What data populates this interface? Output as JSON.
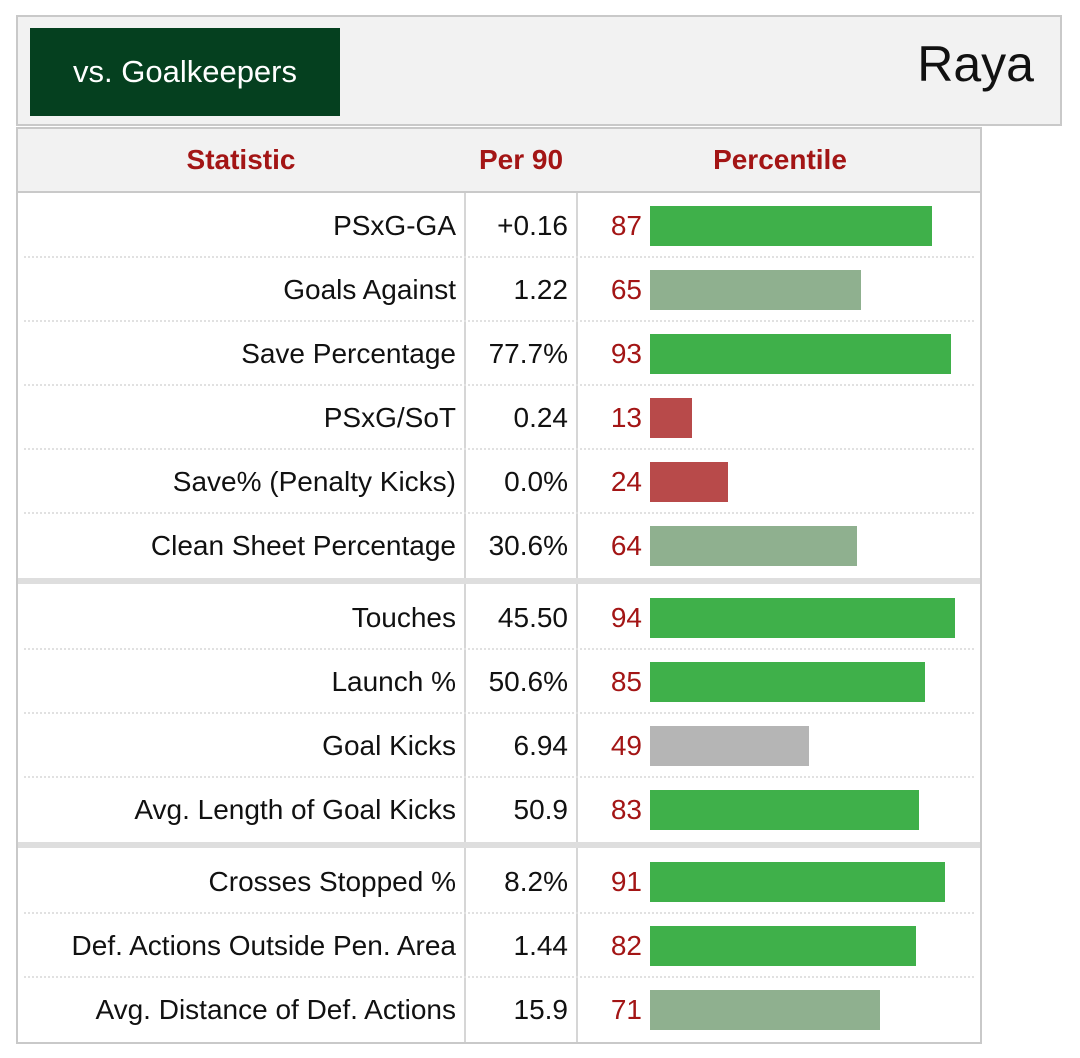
{
  "header": {
    "tab_label": "vs. Goalkeepers",
    "player_name": "Raya"
  },
  "columns": {
    "statistic": "Statistic",
    "per90": "Per 90",
    "percentile": "Percentile"
  },
  "colors": {
    "header_tab_bg": "#05401f",
    "accent_red": "#a31515",
    "high_green": "#3fb04a",
    "mid_green": "#8fb08f",
    "average_gray": "#b5b5b5",
    "low_red": "#b84a4a"
  },
  "chart_data": {
    "type": "bar",
    "orientation": "horizontal",
    "title": "",
    "xlim": [
      0,
      100
    ],
    "groups": [
      {
        "rows": [
          {
            "statistic": "PSxG-GA",
            "per90": "+0.16",
            "percentile": 87
          },
          {
            "statistic": "Goals Against",
            "per90": "1.22",
            "percentile": 65
          },
          {
            "statistic": "Save Percentage",
            "per90": "77.7%",
            "percentile": 93
          },
          {
            "statistic": "PSxG/SoT",
            "per90": "0.24",
            "percentile": 13
          },
          {
            "statistic": "Save% (Penalty Kicks)",
            "per90": "0.0%",
            "percentile": 24
          },
          {
            "statistic": "Clean Sheet Percentage",
            "per90": "30.6%",
            "percentile": 64
          }
        ]
      },
      {
        "rows": [
          {
            "statistic": "Touches",
            "per90": "45.50",
            "percentile": 94
          },
          {
            "statistic": "Launch %",
            "per90": "50.6%",
            "percentile": 85
          },
          {
            "statistic": "Goal Kicks",
            "per90": "6.94",
            "percentile": 49
          },
          {
            "statistic": "Avg. Length of Goal Kicks",
            "per90": "50.9",
            "percentile": 83
          }
        ]
      },
      {
        "rows": [
          {
            "statistic": "Crosses Stopped %",
            "per90": "8.2%",
            "percentile": 91
          },
          {
            "statistic": "Def. Actions Outside Pen. Area",
            "per90": "1.44",
            "percentile": 82
          },
          {
            "statistic": "Avg. Distance of Def. Actions",
            "per90": "15.9",
            "percentile": 71
          }
        ]
      }
    ]
  }
}
